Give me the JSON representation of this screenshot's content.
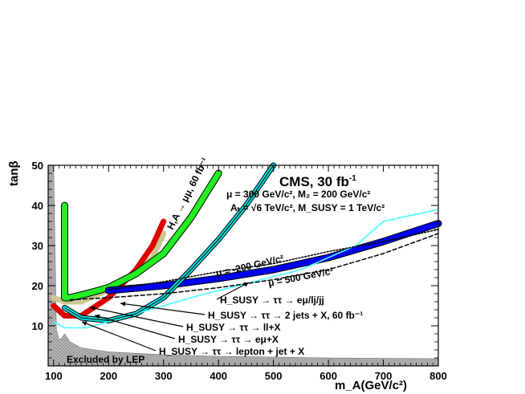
{
  "chart_data": {
    "type": "line",
    "title": "",
    "xlabel": "m_A(GeV/c²)",
    "ylabel": "tanβ",
    "xlim": [
      90,
      800
    ],
    "ylim": [
      0,
      50
    ],
    "x_ticks": [
      100,
      200,
      300,
      400,
      500,
      600,
      700,
      800
    ],
    "y_ticks": [
      10,
      20,
      30,
      40,
      50
    ],
    "grid": false,
    "annotations": {
      "experiment": "CMS, 30 fb",
      "experiment_sup": "-1",
      "param_line1": "μ = 300 GeV/c², M₂ = 200 GeV/c²",
      "param_line2": "Aₜ = √6 TeV/c², M_SUSY = 1 TeV/c²",
      "mu_200": "μ = -200 GeV/c²",
      "mu_500": "μ = 500 GeV/c²",
      "lep_label": "Excluded by LEP",
      "hmumu_label": "H,A → μμ, 60 fb⁻¹",
      "legend": [
        "H_SUSY → ττ → eμ/lj/jj",
        "H_SUSY → ττ → 2 jets + X, 60 fb⁻¹",
        "H_SUSY → ττ → ll+X",
        "H_SUSY → ττ → eμ+X",
        "H_SUSY → ττ → lepton + jet + X"
      ]
    },
    "series": [
      {
        "name": "H,A → μμ, 60 fb⁻¹",
        "color": "#22ee22",
        "x": [
          120,
          120,
          130,
          160,
          200,
          250,
          300,
          350,
          400
        ],
        "y": [
          40,
          17,
          17,
          18,
          19.5,
          23,
          28,
          37,
          48
        ]
      },
      {
        "name": "H_SUSY → ττ → eμ/lj/jj",
        "color": "#0000ee",
        "x": [
          200,
          300,
          400,
          500,
          600,
          700,
          800
        ],
        "y": [
          18.8,
          20,
          21.8,
          24,
          27,
          31,
          35.5
        ]
      },
      {
        "name": "H_SUSY → ττ → 2 jets + X, 60 fb⁻¹",
        "color": "#00e0e0",
        "x": [
          120,
          150,
          200,
          250,
          300,
          350,
          400,
          450,
          500
        ],
        "y": [
          14.5,
          12,
          11.3,
          13,
          17,
          24,
          31.5,
          40,
          50
        ]
      },
      {
        "name": "H_SUSY → ττ → ll+X",
        "color": "#dd0000",
        "x": [
          100,
          120,
          150,
          200,
          250,
          280,
          300
        ],
        "y": [
          15,
          12.5,
          12.5,
          17,
          24,
          30,
          36
        ]
      },
      {
        "name": "H_SUSY → ττ → eμ+X",
        "color": "#c8c890",
        "x": [
          100,
          120,
          150,
          200,
          250,
          280,
          300
        ],
        "y": [
          17,
          16,
          16,
          19,
          23,
          27,
          33
        ]
      },
      {
        "name": "H_SUSY → ττ → lepton + jet + X",
        "color": "#44ffff",
        "x": [
          100,
          120,
          160,
          250,
          350,
          450,
          550,
          650,
          700,
          800
        ],
        "y": [
          11,
          9.5,
          9.5,
          13,
          17,
          20.5,
          24,
          30,
          36,
          39
        ]
      },
      {
        "name": "μ = -200 GeV/c²",
        "color": "#000000",
        "x": [
          200,
          300,
          400,
          500,
          600,
          700,
          800
        ],
        "y": [
          19,
          21,
          23.5,
          25.5,
          28.5,
          31,
          34
        ]
      },
      {
        "name": "μ = 500 GeV/c²",
        "color": "#000000",
        "x": [
          130,
          200,
          300,
          400,
          500,
          600,
          700,
          800
        ],
        "y": [
          16.5,
          17,
          18,
          19.5,
          21.5,
          24,
          28,
          33
        ]
      }
    ],
    "lep_excluded": {
      "x": [
        90,
        100,
        105,
        110,
        115,
        120,
        130,
        150,
        200,
        300,
        400,
        500,
        600,
        700,
        800
      ],
      "y": [
        50,
        50,
        9,
        6.5,
        7,
        8,
        6,
        4.5,
        3.5,
        2.8,
        2.4,
        2.2,
        2.0,
        1.9,
        1.8
      ]
    }
  }
}
